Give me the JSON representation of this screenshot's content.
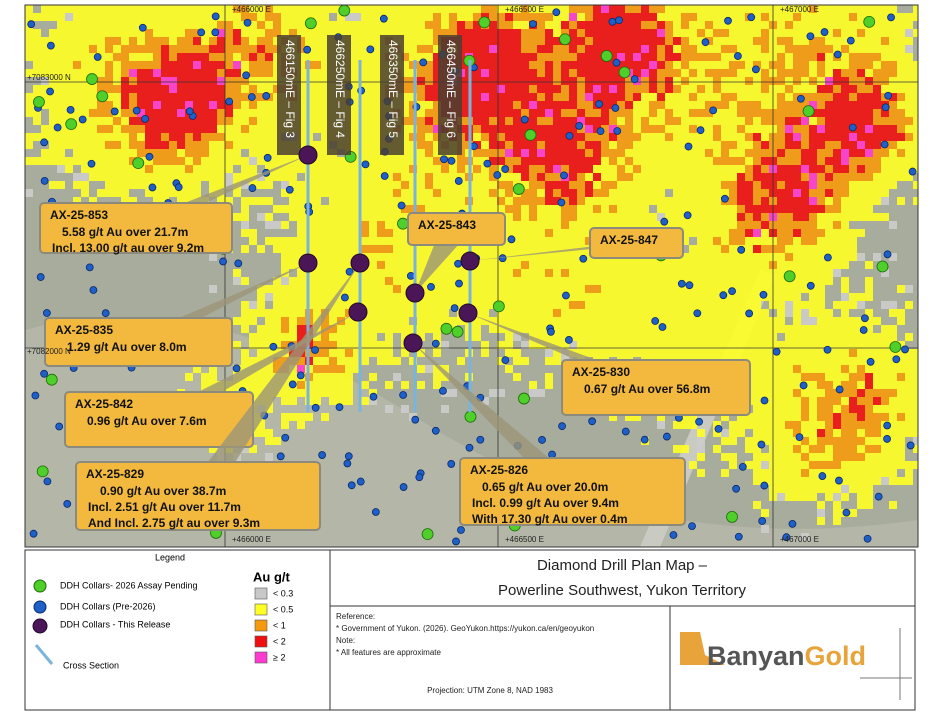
{
  "map": {
    "grid_labels_top": [
      "+466000 E",
      "+466500 E",
      "+467000 E"
    ],
    "grid_labels_bottom": [
      "+466000 E",
      "+466500 E",
      "+467000 E"
    ],
    "grid_labels_left": [
      "+7083000 N",
      "+7082000 N"
    ],
    "sections": [
      "466150mE – Fig 3",
      "466250mE – Fig 4",
      "466350mE – Fig 5",
      "466450mE – Fig 6"
    ],
    "callouts": [
      {
        "hole": "AX-25-853",
        "lines": [
          "5.58 g/t Au over 21.7m",
          "Incl. 13.00 g/t au over 9.2m"
        ]
      },
      {
        "hole": "AX-25-843",
        "lines": []
      },
      {
        "hole": "AX-25-847",
        "lines": []
      },
      {
        "hole": "AX-25-835",
        "lines": [
          "1.29 g/t Au over 8.0m"
        ]
      },
      {
        "hole": "AX-25-830",
        "lines": [
          "0.67 g/t Au over 56.8m"
        ]
      },
      {
        "hole": "AX-25-842",
        "lines": [
          "0.96 g/t Au over 7.6m"
        ]
      },
      {
        "hole": "AX-25-829",
        "lines": [
          "0.90 g/t Au over 38.7m",
          "Incl. 2.51 g/t Au over 11.7m",
          "And Incl. 2.75 g/t au over 9.3m"
        ]
      },
      {
        "hole": "AX-25-826",
        "lines": [
          "0.65 g/t Au over 20.0m",
          "Incl. 0.99 g/t Au over 9.4m",
          "With 17.30 g/t Au over 0.4m"
        ]
      }
    ]
  },
  "legend": {
    "title": "Legend",
    "items": [
      "DDH Collars- 2026 Assay Pending",
      "DDH Collars (Pre-2026)",
      "DDH Collars  - This Release",
      "Cross Section"
    ],
    "au_title": "Au g/t",
    "au_classes": [
      "< 0.3",
      "< 0.5",
      "< 1",
      "< 2",
      "≥ 2"
    ]
  },
  "title": {
    "lines": [
      "Diamond Drill Plan Map –",
      "Powerline Southwest, Yukon Territory"
    ]
  },
  "reference": {
    "lines": [
      "Reference:",
      "* Government of Yukon. (2026).  GeoYukon.https://yukon.ca/en/geoyukon",
      "Note:",
      "* All features are approximate"
    ]
  },
  "projection": "Projection: UTM Zone 8, NAD 1983",
  "logo": {
    "part1": "Banyan",
    "part2": "Gold"
  }
}
